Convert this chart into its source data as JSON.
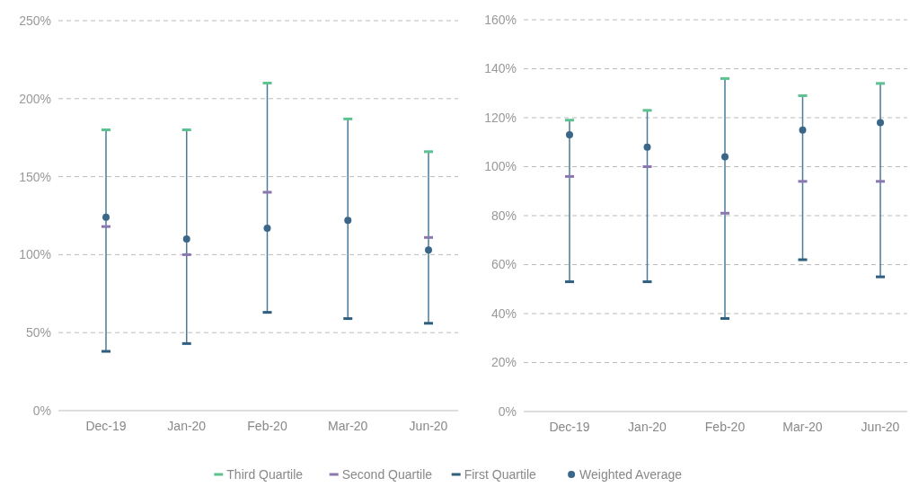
{
  "chart_data": [
    {
      "type": "scatter",
      "categories": [
        "Dec-19",
        "Jan-20",
        "Feb-20",
        "Mar-20",
        "Jun-20"
      ],
      "ylim": [
        0,
        250
      ],
      "yticks": [
        {
          "value": 0,
          "label": "0%"
        },
        {
          "value": 50,
          "label": "50%"
        },
        {
          "value": 100,
          "label": "100%"
        },
        {
          "value": 150,
          "label": "150%"
        },
        {
          "value": 200,
          "label": "200%"
        },
        {
          "value": 250,
          "label": "250%"
        }
      ],
      "grid": "y",
      "legend": "bottom",
      "series": [
        {
          "name": "Third Quartile",
          "color": "#5cc28f",
          "values": [
            180,
            180,
            210,
            187,
            166
          ]
        },
        {
          "name": "Second Quartile",
          "color": "#8b77b0",
          "values": [
            118,
            100,
            140,
            null,
            111
          ]
        },
        {
          "name": "First Quartile",
          "color": "#2f5f7f",
          "values": [
            38,
            43,
            63,
            59,
            56
          ]
        },
        {
          "name": "Weighted Average",
          "color": "#3a6789",
          "marker": "circle",
          "values": [
            124,
            110,
            117,
            122,
            103
          ]
        }
      ]
    },
    {
      "type": "scatter",
      "categories": [
        "Dec-19",
        "Jan-20",
        "Feb-20",
        "Mar-20",
        "Jun-20"
      ],
      "ylim": [
        0,
        160
      ],
      "yticks": [
        {
          "value": 0,
          "label": "0%"
        },
        {
          "value": 20,
          "label": "20%"
        },
        {
          "value": 40,
          "label": "40%"
        },
        {
          "value": 60,
          "label": "60%"
        },
        {
          "value": 80,
          "label": "80%"
        },
        {
          "value": 100,
          "label": "100%"
        },
        {
          "value": 120,
          "label": "120%"
        },
        {
          "value": 140,
          "label": "140%"
        },
        {
          "value": 160,
          "label": "160%"
        }
      ],
      "grid": "y",
      "series": [
        {
          "color": "#5cc28f",
          "values": [
            119,
            123,
            136,
            129,
            134
          ]
        },
        {
          "color": "#8b77b0",
          "values": [
            96,
            100,
            81,
            94,
            94
          ]
        },
        {
          "color": "#2f5f7f",
          "values": [
            53,
            53,
            38,
            62,
            55
          ]
        },
        {
          "color": "#3a6789",
          "marker": "circle",
          "values": [
            113,
            108,
            104,
            115,
            118
          ]
        }
      ]
    }
  ]
}
